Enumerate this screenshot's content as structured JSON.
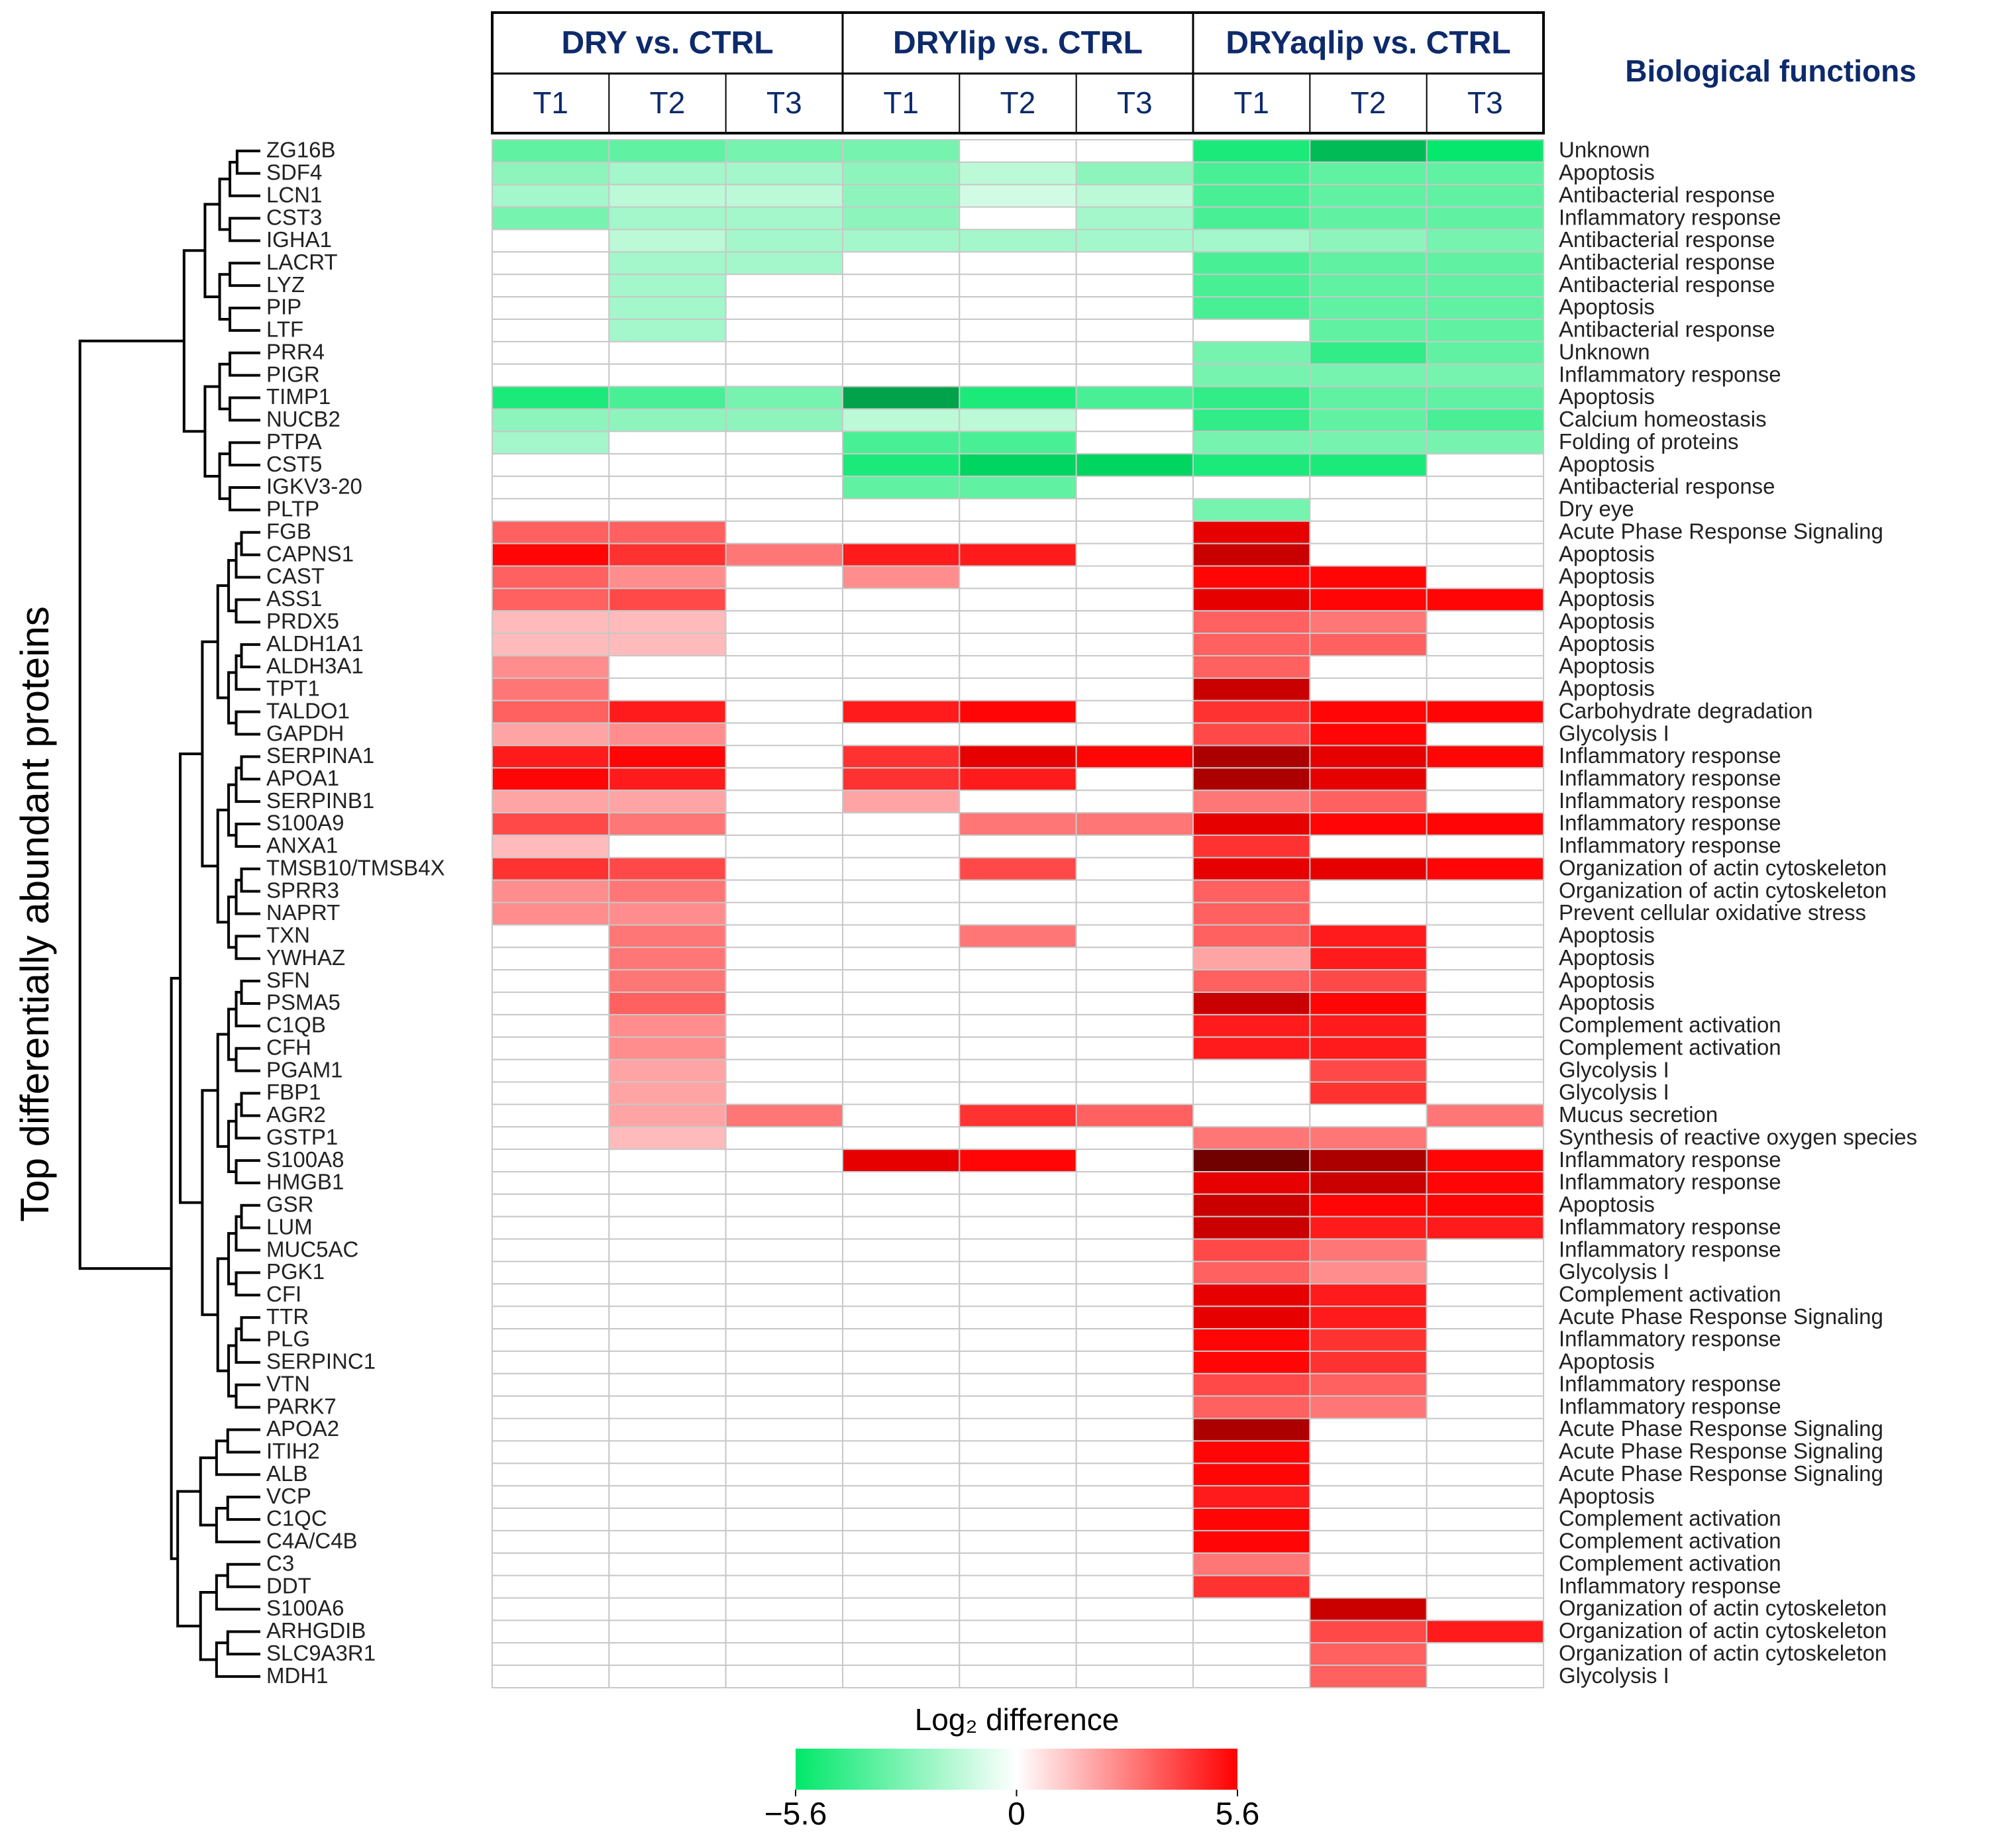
{
  "chart_data": {
    "type": "heatmap",
    "y_label": "Top differentially abundant proteins",
    "groups": [
      "DRY vs. CTRL",
      "DRYlip vs. CTRL",
      "DRYaqlip vs. CTRL"
    ],
    "columns": [
      "T1",
      "T2",
      "T3",
      "T1",
      "T2",
      "T3",
      "T1",
      "T2",
      "T3"
    ],
    "functions_title": "Biological functions",
    "categories": [
      "ZG16B",
      "SDF4",
      "LCN1",
      "CST3",
      "IGHA1",
      "LACRT",
      "LYZ",
      "PIP",
      "LTF",
      "PRR4",
      "PIGR",
      "TIMP1",
      "NUCB2",
      "PTPA",
      "CST5",
      "IGKV3-20",
      "PLTP",
      "FGB",
      "CAPNS1",
      "CAST",
      "ASS1",
      "PRDX5",
      "ALDH1A1",
      "ALDH3A1",
      "TPT1",
      "TALDO1",
      "GAPDH",
      "SERPINA1",
      "APOA1",
      "SERPINB1",
      "S100A9",
      "ANXA1",
      "TMSB10/TMSB4X",
      "SPRR3",
      "NAPRT",
      "TXN",
      "YWHAZ",
      "SFN",
      "PSMA5",
      "C1QB",
      "CFH",
      "PGAM1",
      "FBP1",
      "AGR2",
      "GSTP1",
      "S100A8",
      "HMGB1",
      "GSR",
      "LUM",
      "MUC5AC",
      "PGK1",
      "CFI",
      "TTR",
      "PLG",
      "SERPINC1",
      "VTN",
      "PARK7",
      "APOA2",
      "ITIH2",
      "ALB",
      "VCP",
      "C1QC",
      "C4A/C4B",
      "C3",
      "DDT",
      "S100A6",
      "ARHGDIB",
      "SLC9A3R1",
      "MDH1"
    ],
    "functions": [
      "Unknown",
      "Apoptosis",
      "Antibacterial response",
      "Inflammatory response",
      "Antibacterial response",
      "Antibacterial response",
      "Antibacterial response",
      "Apoptosis",
      "Antibacterial response",
      "Unknown",
      "Inflammatory response",
      "Apoptosis",
      "Calcium homeostasis",
      "Folding of proteins",
      "Apoptosis",
      "Antibacterial response",
      "Dry eye",
      "Acute Phase Response Signaling",
      "Apoptosis",
      "Apoptosis",
      "Apoptosis",
      "Apoptosis",
      "Apoptosis",
      "Apoptosis",
      "Apoptosis",
      "Carbohydrate degradation",
      "Glycolysis I",
      "Inflammatory response",
      "Inflammatory response",
      "Inflammatory response",
      "Inflammatory response",
      "Inflammatory response",
      "Organization of actin cytoskeleton",
      "Organization of actin cytoskeleton",
      "Prevent cellular oxidative stress",
      "Apoptosis",
      "Apoptosis",
      "Apoptosis",
      "Apoptosis",
      "Complement activation",
      "Complement activation",
      "Glycolysis I",
      "Glycolysis I",
      "Mucus secretion",
      "Synthesis of reactive oxygen species",
      "Inflammatory response",
      "Inflammatory response",
      "Apoptosis",
      "Inflammatory response",
      "Inflammatory response",
      "Glycolysis I",
      "Complement activation",
      "Acute Phase Response Signaling",
      "Inflammatory response",
      "Apoptosis",
      "Inflammatory response",
      "Inflammatory response",
      "Acute Phase Response Signaling",
      "Acute Phase Response Signaling",
      "Acute Phase Response Signaling",
      "Apoptosis",
      "Complement activation",
      "Complement activation",
      "Complement activation",
      "Inflammatory response",
      "Organization of actin cytoskeleton",
      "Organization of actin cytoskeleton",
      "Organization of actin cytoskeleton",
      "Glycolysis I"
    ],
    "values": [
      [
        -3.5,
        -3.5,
        -3,
        -3,
        null,
        null,
        -5,
        -6.5,
        -5.5
      ],
      [
        -2.5,
        -2,
        -2,
        -2.5,
        -1.5,
        -2.5,
        -4,
        -3.5,
        -3.5
      ],
      [
        -2,
        -1.5,
        -1.5,
        -2.5,
        -1,
        -1.5,
        -4,
        -3.5,
        -3.5
      ],
      [
        -3,
        -2,
        -2,
        -2.5,
        null,
        -2,
        -4,
        -3.5,
        -3.5
      ],
      [
        null,
        -1.5,
        -2,
        -2,
        -2,
        -2,
        -2,
        -2.5,
        -3
      ],
      [
        null,
        -2,
        -2,
        null,
        null,
        null,
        -4,
        -3.5,
        -3.5
      ],
      [
        null,
        -2,
        null,
        null,
        null,
        null,
        -4,
        -3.5,
        -3.5
      ],
      [
        null,
        -2,
        null,
        null,
        null,
        null,
        -4,
        -3.5,
        -3.5
      ],
      [
        null,
        -2,
        null,
        null,
        null,
        null,
        null,
        -3.5,
        -3.5
      ],
      [
        null,
        null,
        null,
        null,
        null,
        null,
        -3,
        -4.5,
        -3.5
      ],
      [
        null,
        null,
        null,
        null,
        null,
        null,
        -3,
        -3,
        -3
      ],
      [
        -5,
        -4,
        -3,
        -7,
        -5,
        -4,
        -4.5,
        -3.5,
        -3.5
      ],
      [
        -2.5,
        -2.5,
        -2.5,
        -1.5,
        -1.5,
        null,
        -4.5,
        -3.5,
        -4
      ],
      [
        -2,
        null,
        null,
        -4,
        -4,
        null,
        -3,
        -3,
        -3
      ],
      [
        null,
        null,
        null,
        -5,
        -6,
        -6,
        -5,
        -5,
        null
      ],
      [
        null,
        null,
        null,
        -3.5,
        -3.5,
        null,
        null,
        null,
        null
      ],
      [
        null,
        null,
        null,
        null,
        null,
        null,
        -3,
        null,
        null
      ],
      [
        3.5,
        3.5,
        null,
        null,
        null,
        null,
        6,
        null,
        null
      ],
      [
        5.5,
        4.5,
        3,
        5,
        5,
        null,
        6.5,
        null,
        null
      ],
      [
        3.5,
        2.5,
        null,
        2.5,
        null,
        null,
        5.5,
        5.5,
        null
      ],
      [
        3.5,
        4,
        null,
        null,
        null,
        null,
        6,
        5.5,
        5.5
      ],
      [
        1.5,
        1.5,
        null,
        null,
        null,
        null,
        3.5,
        3,
        null
      ],
      [
        1.5,
        1.5,
        null,
        null,
        null,
        null,
        3.5,
        3.5,
        null
      ],
      [
        2.5,
        null,
        null,
        null,
        null,
        null,
        3.5,
        null,
        null
      ],
      [
        3,
        null,
        null,
        null,
        null,
        null,
        6.5,
        null,
        null
      ],
      [
        3.5,
        5,
        null,
        5,
        5.5,
        null,
        4.5,
        5.5,
        5.5
      ],
      [
        2,
        2.5,
        null,
        null,
        null,
        null,
        4,
        5.5,
        null
      ],
      [
        5,
        5.5,
        null,
        4.5,
        6,
        5.5,
        7,
        6,
        5.5
      ],
      [
        5.5,
        5,
        null,
        4.5,
        5,
        null,
        7,
        6,
        null
      ],
      [
        2,
        2,
        null,
        2,
        null,
        null,
        3,
        3.5,
        null
      ],
      [
        4,
        3,
        null,
        null,
        3,
        3,
        6,
        5.5,
        5.5
      ],
      [
        1.5,
        null,
        null,
        null,
        null,
        null,
        4.5,
        null,
        null
      ],
      [
        4.5,
        4,
        null,
        null,
        4,
        null,
        6,
        6,
        5.5
      ],
      [
        2.5,
        3,
        null,
        null,
        null,
        null,
        3.5,
        null,
        null
      ],
      [
        2.5,
        2.5,
        null,
        null,
        null,
        null,
        3.5,
        null,
        null
      ],
      [
        null,
        3,
        null,
        null,
        3,
        null,
        3.5,
        5,
        null
      ],
      [
        null,
        3,
        null,
        null,
        null,
        null,
        2,
        5,
        null
      ],
      [
        null,
        3,
        null,
        null,
        null,
        null,
        3.5,
        4,
        null
      ],
      [
        null,
        3.5,
        null,
        null,
        null,
        null,
        6.5,
        5.5,
        null
      ],
      [
        null,
        2.5,
        null,
        null,
        null,
        null,
        5,
        5,
        null
      ],
      [
        null,
        2.5,
        null,
        null,
        null,
        null,
        5,
        5,
        null
      ],
      [
        null,
        2,
        null,
        null,
        null,
        null,
        null,
        4,
        null
      ],
      [
        null,
        2,
        null,
        null,
        null,
        null,
        null,
        4.5,
        null
      ],
      [
        null,
        2,
        3,
        null,
        4.5,
        3.5,
        null,
        null,
        3
      ],
      [
        null,
        1.5,
        null,
        null,
        null,
        null,
        3,
        3,
        null
      ],
      [
        null,
        null,
        null,
        6,
        5.5,
        null,
        8,
        7,
        5.5
      ],
      [
        null,
        null,
        null,
        null,
        null,
        null,
        6,
        6.5,
        5.5
      ],
      [
        null,
        null,
        null,
        null,
        null,
        null,
        6.5,
        5.5,
        5.5
      ],
      [
        null,
        null,
        null,
        null,
        null,
        null,
        6.5,
        5,
        5
      ],
      [
        null,
        null,
        null,
        null,
        null,
        null,
        4,
        3,
        null
      ],
      [
        null,
        null,
        null,
        null,
        null,
        null,
        3.5,
        2.5,
        null
      ],
      [
        null,
        null,
        null,
        null,
        null,
        null,
        6,
        5,
        null
      ],
      [
        null,
        null,
        null,
        null,
        null,
        null,
        6,
        5,
        null
      ],
      [
        null,
        null,
        null,
        null,
        null,
        null,
        5.5,
        4.5,
        null
      ],
      [
        null,
        null,
        null,
        null,
        null,
        null,
        5.5,
        4.5,
        null
      ],
      [
        null,
        null,
        null,
        null,
        null,
        null,
        4,
        3.5,
        null
      ],
      [
        null,
        null,
        null,
        null,
        null,
        null,
        3.5,
        3,
        null
      ],
      [
        null,
        null,
        null,
        null,
        null,
        null,
        7,
        null,
        null
      ],
      [
        null,
        null,
        null,
        null,
        null,
        null,
        5.5,
        null,
        null
      ],
      [
        null,
        null,
        null,
        null,
        null,
        null,
        5.5,
        null,
        null
      ],
      [
        null,
        null,
        null,
        null,
        null,
        null,
        5,
        null,
        null
      ],
      [
        null,
        null,
        null,
        null,
        null,
        null,
        5.5,
        null,
        null
      ],
      [
        null,
        null,
        null,
        null,
        null,
        null,
        5.5,
        null,
        null
      ],
      [
        null,
        null,
        null,
        null,
        null,
        null,
        3,
        null,
        null
      ],
      [
        null,
        null,
        null,
        null,
        null,
        null,
        4.5,
        null,
        null
      ],
      [
        null,
        null,
        null,
        null,
        null,
        null,
        null,
        6.5,
        null
      ],
      [
        null,
        null,
        null,
        null,
        null,
        null,
        null,
        4,
        5
      ],
      [
        null,
        null,
        null,
        null,
        null,
        null,
        null,
        3.5,
        null
      ],
      [
        null,
        null,
        null,
        null,
        null,
        null,
        null,
        3.5,
        null
      ]
    ],
    "colors": {
      "low": "#00e86a",
      "mid": "#ffffff",
      "high": "#ff0000"
    },
    "colorbar": {
      "title": "Log₂ difference",
      "clim": [
        -5.6,
        5.6
      ],
      "ticks": [
        {
          "value": -5.6,
          "label": "−5.6"
        },
        0,
        5.6
      ]
    }
  }
}
